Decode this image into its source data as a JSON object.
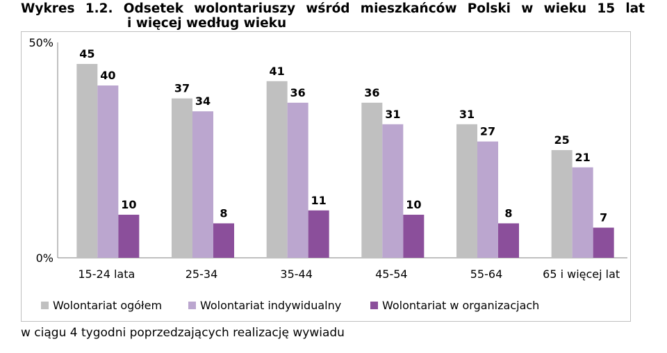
{
  "title": {
    "line1": "Wykres 1.2. Odsetek wolontariuszy wśród mieszkańców Polski w wieku 15 lat",
    "line2": "i więcej według wieku"
  },
  "chart_data": {
    "type": "bar",
    "title": "Odsetek wolontariuszy wśród mieszkańców Polski w wieku 15 lat i więcej według wieku",
    "categories": [
      "15-24 lata",
      "25-34",
      "35-44",
      "45-54",
      "55-64",
      "65 i więcej lat"
    ],
    "series": [
      {
        "name": "Wolontariat ogółem",
        "color": "#c0c0c0",
        "values": [
          45,
          37,
          41,
          36,
          31,
          25
        ]
      },
      {
        "name": "Wolontariat indywidualny",
        "color": "#bba6cf",
        "values": [
          40,
          34,
          36,
          31,
          27,
          21
        ]
      },
      {
        "name": "Wolontariat w organizacjach",
        "color": "#8b4f9b",
        "values": [
          10,
          8,
          11,
          10,
          8,
          7
        ]
      }
    ],
    "ylim": [
      0,
      50
    ],
    "yticks": [
      "0%",
      "50%"
    ],
    "xlabel": "",
    "ylabel": "",
    "legend": "bottom-left",
    "grid": false
  },
  "footnote": "w ciągu 4 tygodni poprzedzających realizację wywiadu"
}
